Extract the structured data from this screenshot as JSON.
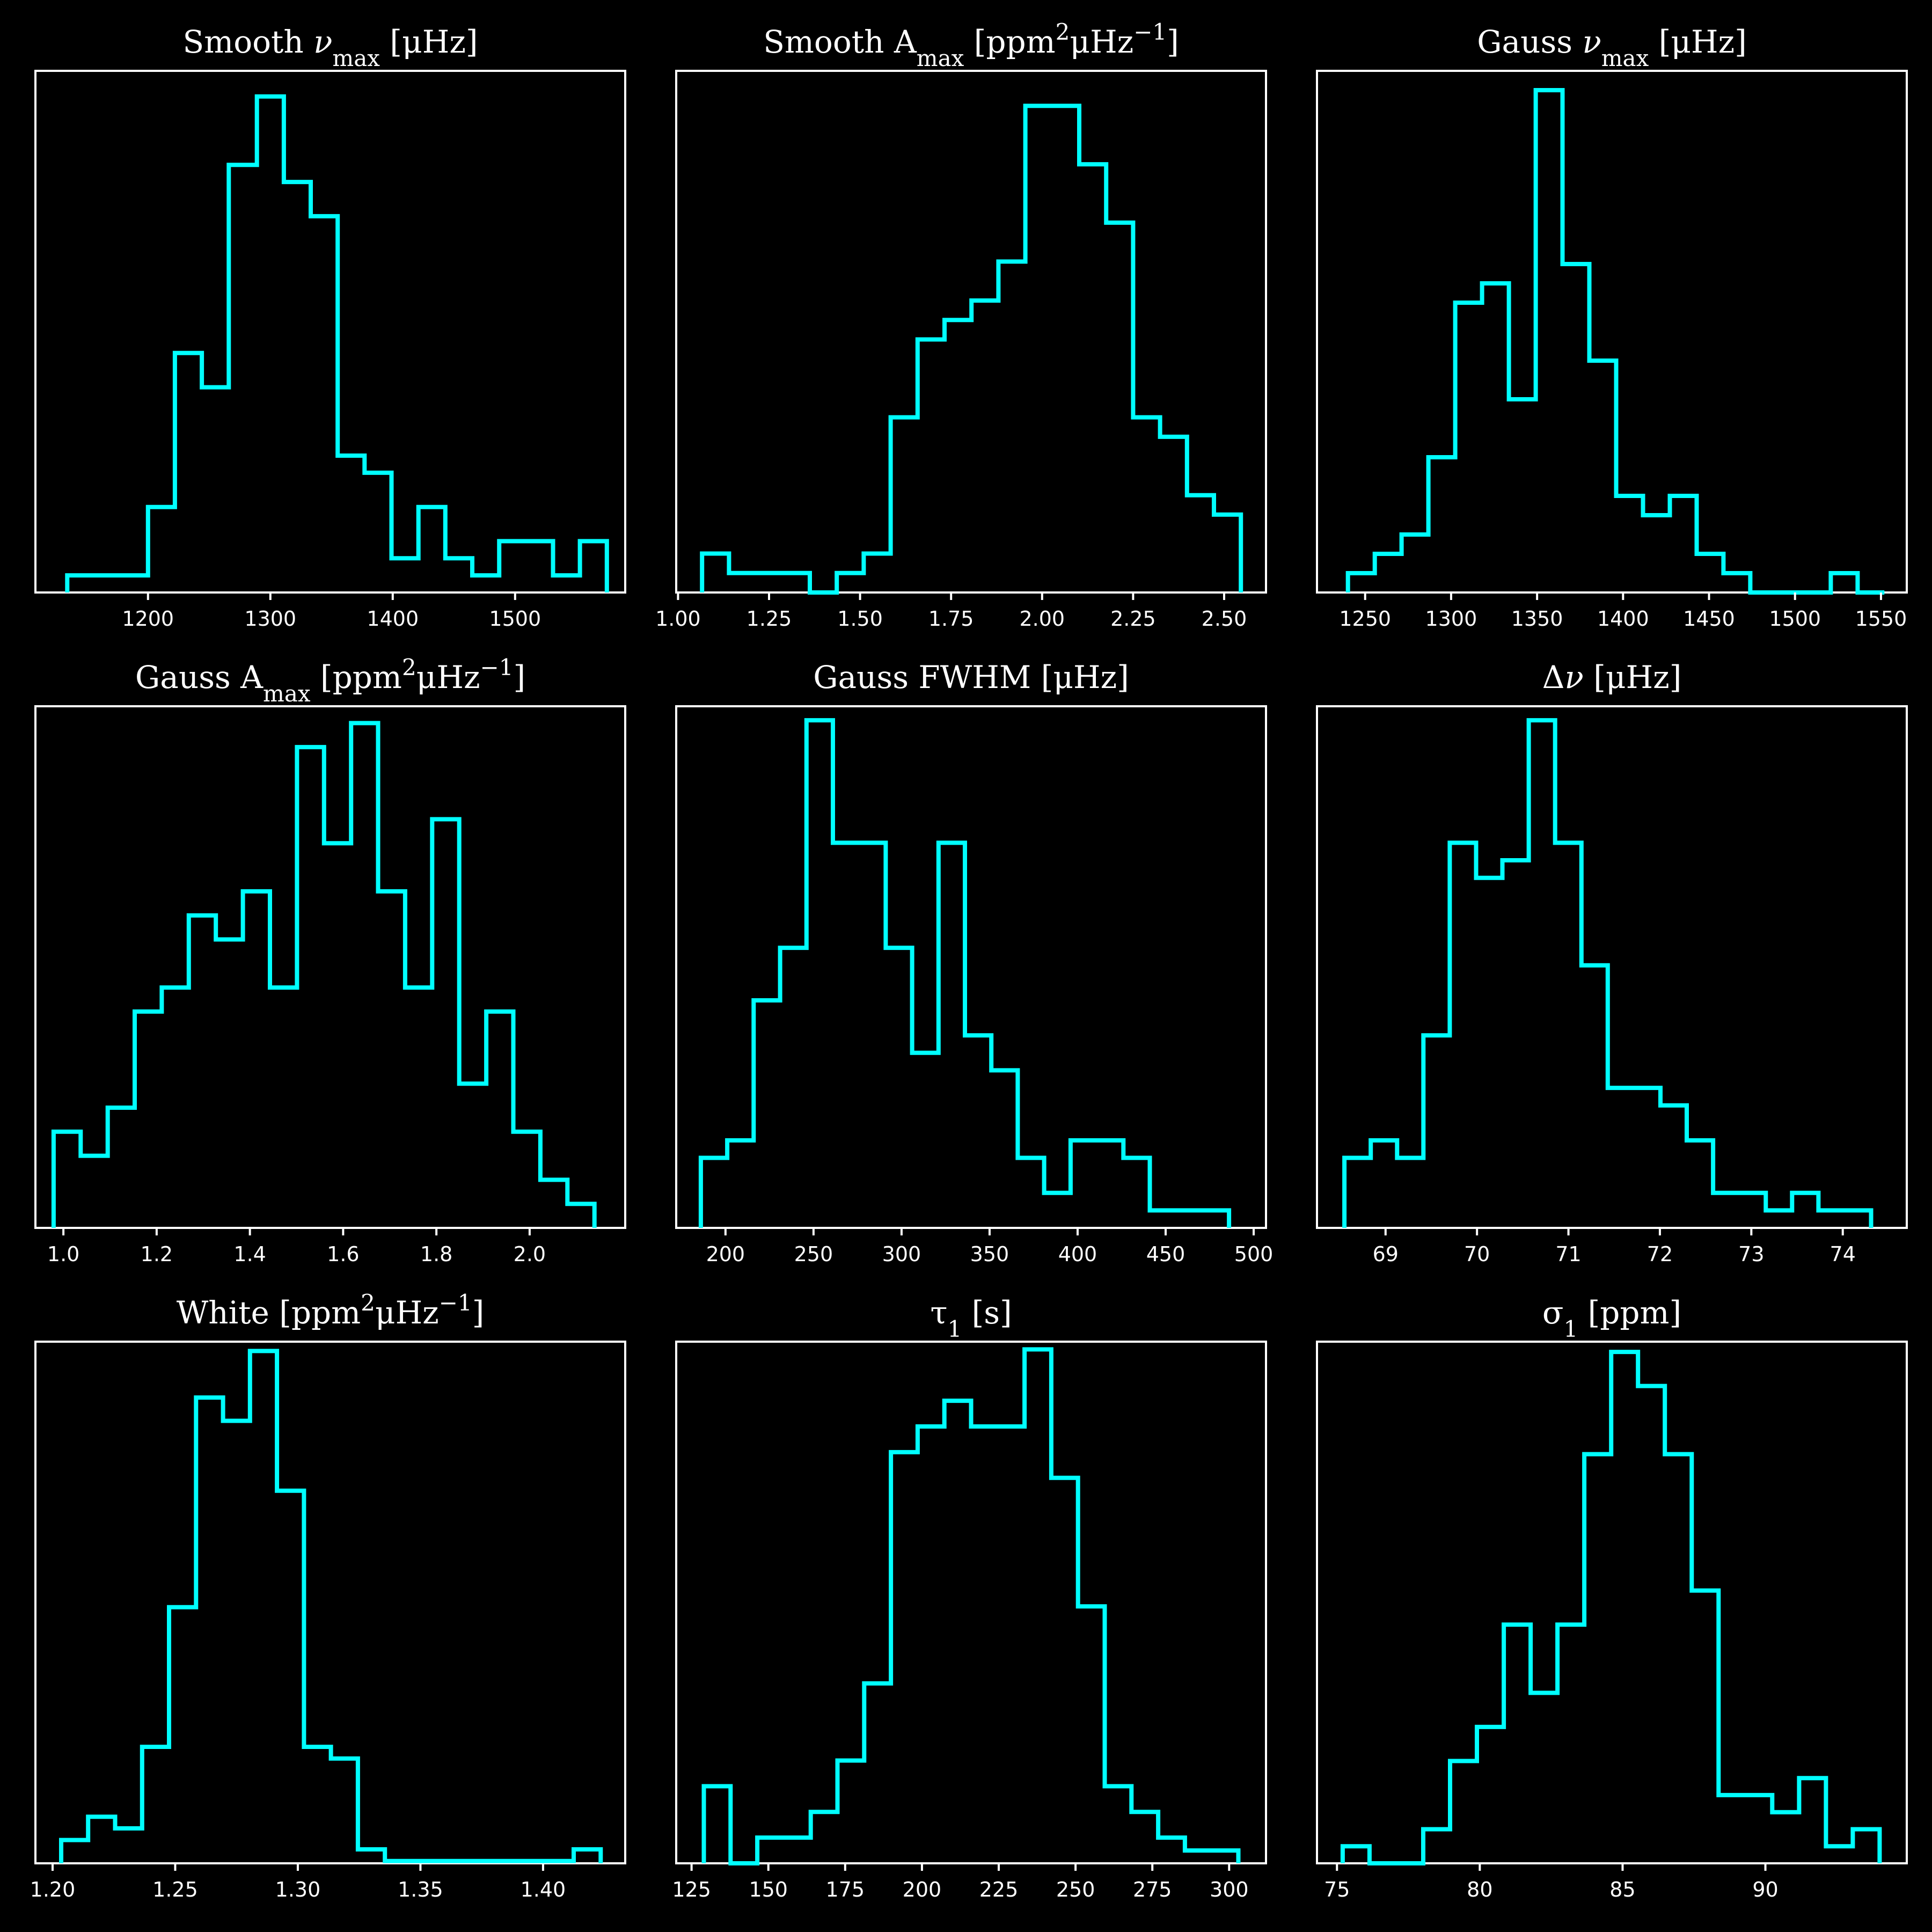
{
  "style": {
    "background": "#000000",
    "foreground": "#ffffff",
    "series_color": "#00ffff"
  },
  "chart_data": [
    {
      "type": "histogram",
      "title_parts": [
        {
          "t": "Smooth "
        },
        {
          "t": "ν",
          "italic": true
        },
        {
          "t": "max",
          "sub": true
        },
        {
          "t": " [μHz]"
        }
      ],
      "xlim": [
        1108,
        1590
      ],
      "xticks": [
        1200,
        1300,
        1400,
        1500
      ],
      "xtick_labels": [
        "1200",
        "1300",
        "1400",
        "1500"
      ],
      "bins": [
        1134,
        1156,
        1178,
        1200,
        1222,
        1244,
        1266,
        1289,
        1311,
        1333,
        1355,
        1377,
        1399,
        1421,
        1443,
        1465,
        1487,
        1509,
        1531,
        1553,
        1575
      ],
      "counts": [
        1,
        1,
        1,
        5,
        14,
        12,
        25,
        29,
        24,
        22,
        8,
        7,
        2,
        5,
        2,
        1,
        3,
        3,
        1,
        3
      ],
      "ylim": [
        0,
        30.5
      ]
    },
    {
      "type": "histogram",
      "title_parts": [
        {
          "t": "Smooth A"
        },
        {
          "t": "max",
          "sub": true
        },
        {
          "t": " [ppm"
        },
        {
          "t": "2",
          "sup": true
        },
        {
          "t": "μHz"
        },
        {
          "t": "−1",
          "sup": true
        },
        {
          "t": "]"
        }
      ],
      "xlim": [
        0.995,
        2.615
      ],
      "xticks": [
        1.0,
        1.25,
        1.5,
        1.75,
        2.0,
        2.25,
        2.5
      ],
      "xtick_labels": [
        "1.00",
        "1.25",
        "1.50",
        "1.75",
        "2.00",
        "2.25",
        "2.50"
      ],
      "bins": [
        1.066,
        1.14,
        1.214,
        1.288,
        1.362,
        1.436,
        1.51,
        1.584,
        1.658,
        1.732,
        1.806,
        1.88,
        1.954,
        2.028,
        2.102,
        2.176,
        2.25,
        2.324,
        2.398,
        2.472,
        2.546
      ],
      "counts": [
        2,
        1,
        1,
        1,
        0,
        1,
        2,
        9,
        13,
        14,
        15,
        17,
        25,
        25,
        22,
        19,
        9,
        8,
        5,
        4
      ],
      "ylim": [
        0,
        26.8
      ]
    },
    {
      "type": "histogram",
      "title_parts": [
        {
          "t": "Gauss "
        },
        {
          "t": "ν",
          "italic": true
        },
        {
          "t": "max",
          "sub": true
        },
        {
          "t": " [μHz]"
        }
      ],
      "xlim": [
        1222,
        1565
      ],
      "xticks": [
        1250,
        1300,
        1350,
        1400,
        1450,
        1500,
        1550
      ],
      "xtick_labels": [
        "1250",
        "1300",
        "1350",
        "1400",
        "1450",
        "1500",
        "1550"
      ],
      "bins": [
        1240,
        1255.6,
        1271.2,
        1286.8,
        1302.4,
        1318,
        1333.6,
        1349.2,
        1364.8,
        1380.4,
        1396,
        1411.6,
        1427.2,
        1442.8,
        1458.4,
        1474,
        1489.6,
        1505.2,
        1520.8,
        1536.4,
        1552
      ],
      "counts": [
        1,
        2,
        3,
        7,
        15,
        16,
        10,
        26,
        17,
        12,
        5,
        4,
        5,
        2,
        1,
        0,
        0,
        0,
        1,
        0
      ],
      "ylim": [
        0,
        27.0
      ]
    },
    {
      "type": "histogram",
      "title_parts": [
        {
          "t": "Gauss A"
        },
        {
          "t": "max",
          "sub": true
        },
        {
          "t": " [ppm"
        },
        {
          "t": "2",
          "sup": true
        },
        {
          "t": "μHz"
        },
        {
          "t": "−1",
          "sup": true
        },
        {
          "t": "]"
        }
      ],
      "xlim": [
        0.94,
        2.205
      ],
      "xticks": [
        1.0,
        1.2,
        1.4,
        1.6,
        1.8,
        2.0
      ],
      "xtick_labels": [
        "1.0",
        "1.2",
        "1.4",
        "1.6",
        "1.8",
        "2.0"
      ],
      "bins": [
        0.979,
        1.037,
        1.095,
        1.153,
        1.211,
        1.269,
        1.327,
        1.385,
        1.443,
        1.501,
        1.559,
        1.617,
        1.675,
        1.733,
        1.791,
        1.849,
        1.907,
        1.965,
        2.023,
        2.081,
        2.139
      ],
      "counts": [
        4,
        3,
        5,
        9,
        10,
        13,
        12,
        14,
        10,
        20,
        16,
        21,
        14,
        10,
        17,
        6,
        9,
        4,
        2,
        1
      ],
      "ylim": [
        0,
        21.7
      ]
    },
    {
      "type": "histogram",
      "title_parts": [
        {
          "t": "Gauss FWHM [μHz]"
        }
      ],
      "xlim": [
        172,
        507
      ],
      "xticks": [
        200,
        250,
        300,
        350,
        400,
        450,
        500
      ],
      "xtick_labels": [
        "200",
        "250",
        "300",
        "350",
        "400",
        "450",
        "500"
      ],
      "bins": [
        186,
        201,
        216,
        231,
        246,
        261,
        276,
        291,
        306,
        321,
        336,
        351,
        366,
        381,
        396,
        411,
        426,
        441,
        456,
        471,
        486
      ],
      "counts": [
        4,
        5,
        13,
        16,
        29,
        22,
        22,
        16,
        10,
        22,
        11,
        9,
        4,
        2,
        5,
        5,
        4,
        1,
        1,
        1
      ],
      "ylim": [
        0,
        29.8
      ]
    },
    {
      "type": "histogram",
      "title_parts": [
        {
          "t": "Δ"
        },
        {
          "t": "ν",
          "italic": true
        },
        {
          "t": " [μHz]"
        }
      ],
      "xlim": [
        68.25,
        74.7
      ],
      "xticks": [
        69,
        70,
        71,
        72,
        73,
        74
      ],
      "xtick_labels": [
        "69",
        "70",
        "71",
        "72",
        "73",
        "74"
      ],
      "bins": [
        68.55,
        68.838,
        69.126,
        69.414,
        69.702,
        69.99,
        70.278,
        70.566,
        70.854,
        71.142,
        71.43,
        71.718,
        72.006,
        72.294,
        72.582,
        72.87,
        73.158,
        73.446,
        73.734,
        74.022,
        74.31
      ],
      "counts": [
        4,
        5,
        4,
        11,
        22,
        20,
        21,
        29,
        22,
        15,
        8,
        8,
        7,
        5,
        2,
        2,
        1,
        2,
        1,
        1
      ],
      "ylim": [
        0,
        29.8
      ]
    },
    {
      "type": "histogram",
      "title_parts": [
        {
          "t": "White [ppm"
        },
        {
          "t": "2",
          "sup": true
        },
        {
          "t": "μHz"
        },
        {
          "t": "−1",
          "sup": true
        },
        {
          "t": "]"
        }
      ],
      "xlim": [
        1.193,
        1.4335
      ],
      "xticks": [
        1.2,
        1.25,
        1.3,
        1.35,
        1.4
      ],
      "xtick_labels": [
        "1.20",
        "1.25",
        "1.30",
        "1.35",
        "1.40"
      ],
      "bins": [
        1.2035,
        1.2145,
        1.2255,
        1.2365,
        1.2475,
        1.2585,
        1.2695,
        1.2805,
        1.2915,
        1.3025,
        1.3135,
        1.3245,
        1.3355,
        1.3465,
        1.3575,
        1.3685,
        1.3795,
        1.3905,
        1.4015,
        1.4125,
        1.4235
      ],
      "counts": [
        1,
        2,
        1.5,
        5,
        11,
        20,
        19,
        22,
        16,
        5,
        4.5,
        0.6,
        0.1,
        0.1,
        0.1,
        0.1,
        0.1,
        0.1,
        0.1,
        0.6
      ],
      "ylim": [
        0,
        22.4
      ]
    },
    {
      "type": "histogram",
      "title_parts": [
        {
          "t": "τ"
        },
        {
          "t": "1",
          "sub": true
        },
        {
          "t": " [s]"
        }
      ],
      "xlim": [
        120,
        312
      ],
      "xticks": [
        125,
        150,
        175,
        200,
        225,
        250,
        275,
        300
      ],
      "xtick_labels": [
        "125",
        "150",
        "175",
        "200",
        "225",
        "250",
        "275",
        "300"
      ],
      "bins": [
        129,
        137.7,
        146.4,
        155.1,
        163.8,
        172.5,
        181.2,
        189.9,
        198.6,
        207.3,
        216,
        224.7,
        233.4,
        242.1,
        250.8,
        259.5,
        268.2,
        276.9,
        285.6,
        294.3,
        303
      ],
      "counts": [
        3,
        0,
        1,
        1,
        2,
        4,
        7,
        16,
        17,
        18,
        17,
        17,
        20,
        15,
        10,
        3,
        2,
        1,
        0.5,
        0.5
      ],
      "ylim": [
        0,
        20.3
      ]
    },
    {
      "type": "histogram",
      "title_parts": [
        {
          "t": "σ"
        },
        {
          "t": "1",
          "sub": true
        },
        {
          "t": " [ppm]"
        }
      ],
      "xlim": [
        74.3,
        94.95
      ],
      "xticks": [
        75,
        80,
        85,
        90
      ],
      "xtick_labels": [
        "75",
        "80",
        "85",
        "90"
      ],
      "bins": [
        75.2,
        76.14,
        77.08,
        78.02,
        78.96,
        79.9,
        80.84,
        81.78,
        82.72,
        83.66,
        84.6,
        85.54,
        86.48,
        87.42,
        88.36,
        89.3,
        90.24,
        91.18,
        92.12,
        93.06,
        94.0
      ],
      "counts": [
        0.5,
        0,
        0,
        1,
        3,
        4,
        7,
        5,
        7,
        12,
        15,
        14,
        12,
        8,
        2,
        2,
        1.5,
        2.5,
        0.5,
        1
      ],
      "ylim": [
        0,
        15.3
      ]
    }
  ]
}
